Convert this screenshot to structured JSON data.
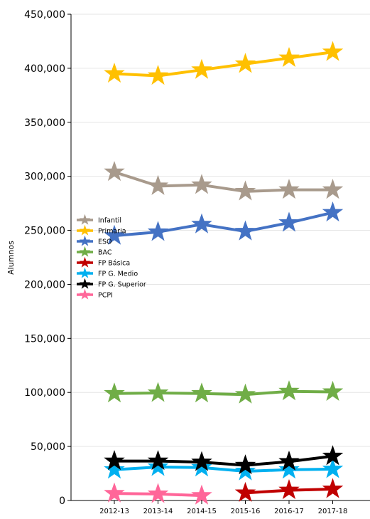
{
  "chart_data": {
    "type": "line",
    "title": "",
    "xlabel": "",
    "ylabel": "Alumnos",
    "categories": [
      "2012-13",
      "2013-14",
      "2014-15",
      "2015-16",
      "2016-17",
      "2017-18"
    ],
    "ylim": [
      0,
      450000
    ],
    "yticks": [
      {
        "value": 0,
        "label": "0"
      },
      {
        "value": 50000,
        "label": "50,000"
      },
      {
        "value": 100000,
        "label": "100,000"
      },
      {
        "value": 150000,
        "label": "150,000"
      },
      {
        "value": 200000,
        "label": "200,000"
      },
      {
        "value": 250000,
        "label": "250,000"
      },
      {
        "value": 300000,
        "label": "300,000"
      },
      {
        "value": 350000,
        "label": "350,000"
      },
      {
        "value": 400000,
        "label": "400,000"
      },
      {
        "value": 450000,
        "label": "450,000"
      }
    ],
    "grid": "horizontal",
    "legend_position": "center-left",
    "marker": "star",
    "series": [
      {
        "name": "Infantil",
        "color": "#a89a8c",
        "values": [
          304000,
          291000,
          292000,
          286000,
          287500,
          287500
        ]
      },
      {
        "name": "Primaria",
        "color": "#ffc000",
        "values": [
          395000,
          393000,
          398500,
          404000,
          409500,
          415000
        ]
      },
      {
        "name": "ESO",
        "color": "#4472c4",
        "values": [
          245000,
          248500,
          255500,
          249000,
          257000,
          266500
        ]
      },
      {
        "name": "BAC",
        "color": "#70ad47",
        "values": [
          99000,
          99500,
          99000,
          98000,
          101000,
          100500
        ]
      },
      {
        "name": "FP Básica",
        "color": "#c00000",
        "values": [
          null,
          null,
          null,
          7000,
          9500,
          10500
        ]
      },
      {
        "name": "FP G. Medio",
        "color": "#00b0f0",
        "values": [
          28500,
          31000,
          30500,
          27000,
          28500,
          29000
        ]
      },
      {
        "name": "FP G. Superior",
        "color": "#000000",
        "values": [
          36500,
          36500,
          35500,
          32500,
          36000,
          41000
        ]
      },
      {
        "name": "PCPI",
        "color": "#ff6699",
        "values": [
          6500,
          6000,
          4500,
          null,
          null,
          null
        ]
      }
    ]
  }
}
